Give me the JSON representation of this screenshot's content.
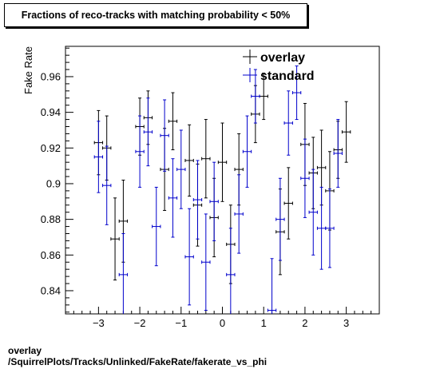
{
  "chart_data": {
    "type": "scatter",
    "title": "Fractions of reco-tracks with matching probability < 50%",
    "ylabel": "Fake Rate",
    "xlabel": "",
    "xlim": [
      -3.8,
      3.8
    ],
    "ylim": [
      0.827,
      0.977
    ],
    "x_ticks": [
      -3,
      -2,
      -1,
      0,
      1,
      2,
      3
    ],
    "x_tick_labels": [
      "−3",
      "−2",
      "−1",
      "0",
      "1",
      "2",
      "3"
    ],
    "y_ticks": [
      0.84,
      0.86,
      0.88,
      0.9,
      0.92,
      0.94,
      0.96
    ],
    "y_tick_labels": [
      "0.84",
      "0.86",
      "0.88",
      "0.9",
      "0.92",
      "0.94",
      "0.96"
    ],
    "bin_half_width": 0.1,
    "legend_placement": "top-right",
    "series": [
      {
        "name": "overlay",
        "color": "#000000",
        "points": [
          {
            "x": -3.0,
            "y": 0.923,
            "err": 0.018
          },
          {
            "x": -2.8,
            "y": 0.92,
            "err": 0.018
          },
          {
            "x": -2.6,
            "y": 0.869,
            "err": 0.023
          },
          {
            "x": -2.4,
            "y": 0.879,
            "err": 0.023
          },
          {
            "x": -2.0,
            "y": 0.932,
            "err": 0.016
          },
          {
            "x": -1.8,
            "y": 0.937,
            "err": 0.015
          },
          {
            "x": -1.4,
            "y": 0.908,
            "err": 0.023
          },
          {
            "x": -1.2,
            "y": 0.935,
            "err": 0.016
          },
          {
            "x": -0.8,
            "y": 0.913,
            "err": 0.02
          },
          {
            "x": -0.6,
            "y": 0.888,
            "err": 0.023
          },
          {
            "x": -0.4,
            "y": 0.914,
            "err": 0.022
          },
          {
            "x": -0.2,
            "y": 0.881,
            "err": 0.022
          },
          {
            "x": 0.0,
            "y": 0.912,
            "err": 0.022
          },
          {
            "x": 0.2,
            "y": 0.866,
            "err": 0.022
          },
          {
            "x": 0.4,
            "y": 0.908,
            "err": 0.02
          },
          {
            "x": 0.8,
            "y": 0.939,
            "err": 0.016
          },
          {
            "x": 1.0,
            "y": 0.949,
            "err": 0.013
          },
          {
            "x": 1.4,
            "y": 0.873,
            "err": 0.024
          },
          {
            "x": 1.6,
            "y": 0.889,
            "err": 0.02
          },
          {
            "x": 2.0,
            "y": 0.922,
            "err": 0.023
          },
          {
            "x": 2.2,
            "y": 0.906,
            "err": 0.02
          },
          {
            "x": 2.4,
            "y": 0.909,
            "err": 0.021
          },
          {
            "x": 2.6,
            "y": 0.896,
            "err": 0.022
          },
          {
            "x": 2.8,
            "y": 0.919,
            "err": 0.016
          },
          {
            "x": 3.0,
            "y": 0.929,
            "err": 0.017
          }
        ]
      },
      {
        "name": "standard",
        "color": "#0000cc",
        "points": [
          {
            "x": -3.0,
            "y": 0.915,
            "err": 0.02
          },
          {
            "x": -2.8,
            "y": 0.899,
            "err": 0.022
          },
          {
            "x": -2.4,
            "y": 0.849,
            "err": 0.023
          },
          {
            "x": -2.0,
            "y": 0.918,
            "err": 0.02
          },
          {
            "x": -1.8,
            "y": 0.929,
            "err": 0.019
          },
          {
            "x": -1.6,
            "y": 0.876,
            "err": 0.022
          },
          {
            "x": -1.4,
            "y": 0.927,
            "err": 0.02
          },
          {
            "x": -1.2,
            "y": 0.892,
            "err": 0.022
          },
          {
            "x": -1.0,
            "y": 0.908,
            "err": 0.022
          },
          {
            "x": -0.8,
            "y": 0.859,
            "err": 0.027
          },
          {
            "x": -0.6,
            "y": 0.891,
            "err": 0.022
          },
          {
            "x": -0.4,
            "y": 0.856,
            "err": 0.027
          },
          {
            "x": -0.2,
            "y": 0.89,
            "err": 0.022
          },
          {
            "x": 0.2,
            "y": 0.849,
            "err": 0.026
          },
          {
            "x": 0.4,
            "y": 0.883,
            "err": 0.022
          },
          {
            "x": 0.6,
            "y": 0.918,
            "err": 0.02
          },
          {
            "x": 0.8,
            "y": 0.949,
            "err": 0.015
          },
          {
            "x": 1.2,
            "y": 0.829,
            "err": 0.029
          },
          {
            "x": 1.4,
            "y": 0.88,
            "err": 0.023
          },
          {
            "x": 1.6,
            "y": 0.934,
            "err": 0.018
          },
          {
            "x": 1.8,
            "y": 0.951,
            "err": 0.015
          },
          {
            "x": 2.0,
            "y": 0.903,
            "err": 0.022
          },
          {
            "x": 2.2,
            "y": 0.884,
            "err": 0.024
          },
          {
            "x": 2.4,
            "y": 0.875,
            "err": 0.023
          },
          {
            "x": 2.6,
            "y": 0.875,
            "err": 0.022
          },
          {
            "x": 2.8,
            "y": 0.917,
            "err": 0.019
          }
        ]
      }
    ]
  },
  "footer": {
    "line1": "overlay",
    "line2": "/SquirrelPlots/Tracks/Unlinked/FakeRate/fakerate_vs_phi"
  }
}
